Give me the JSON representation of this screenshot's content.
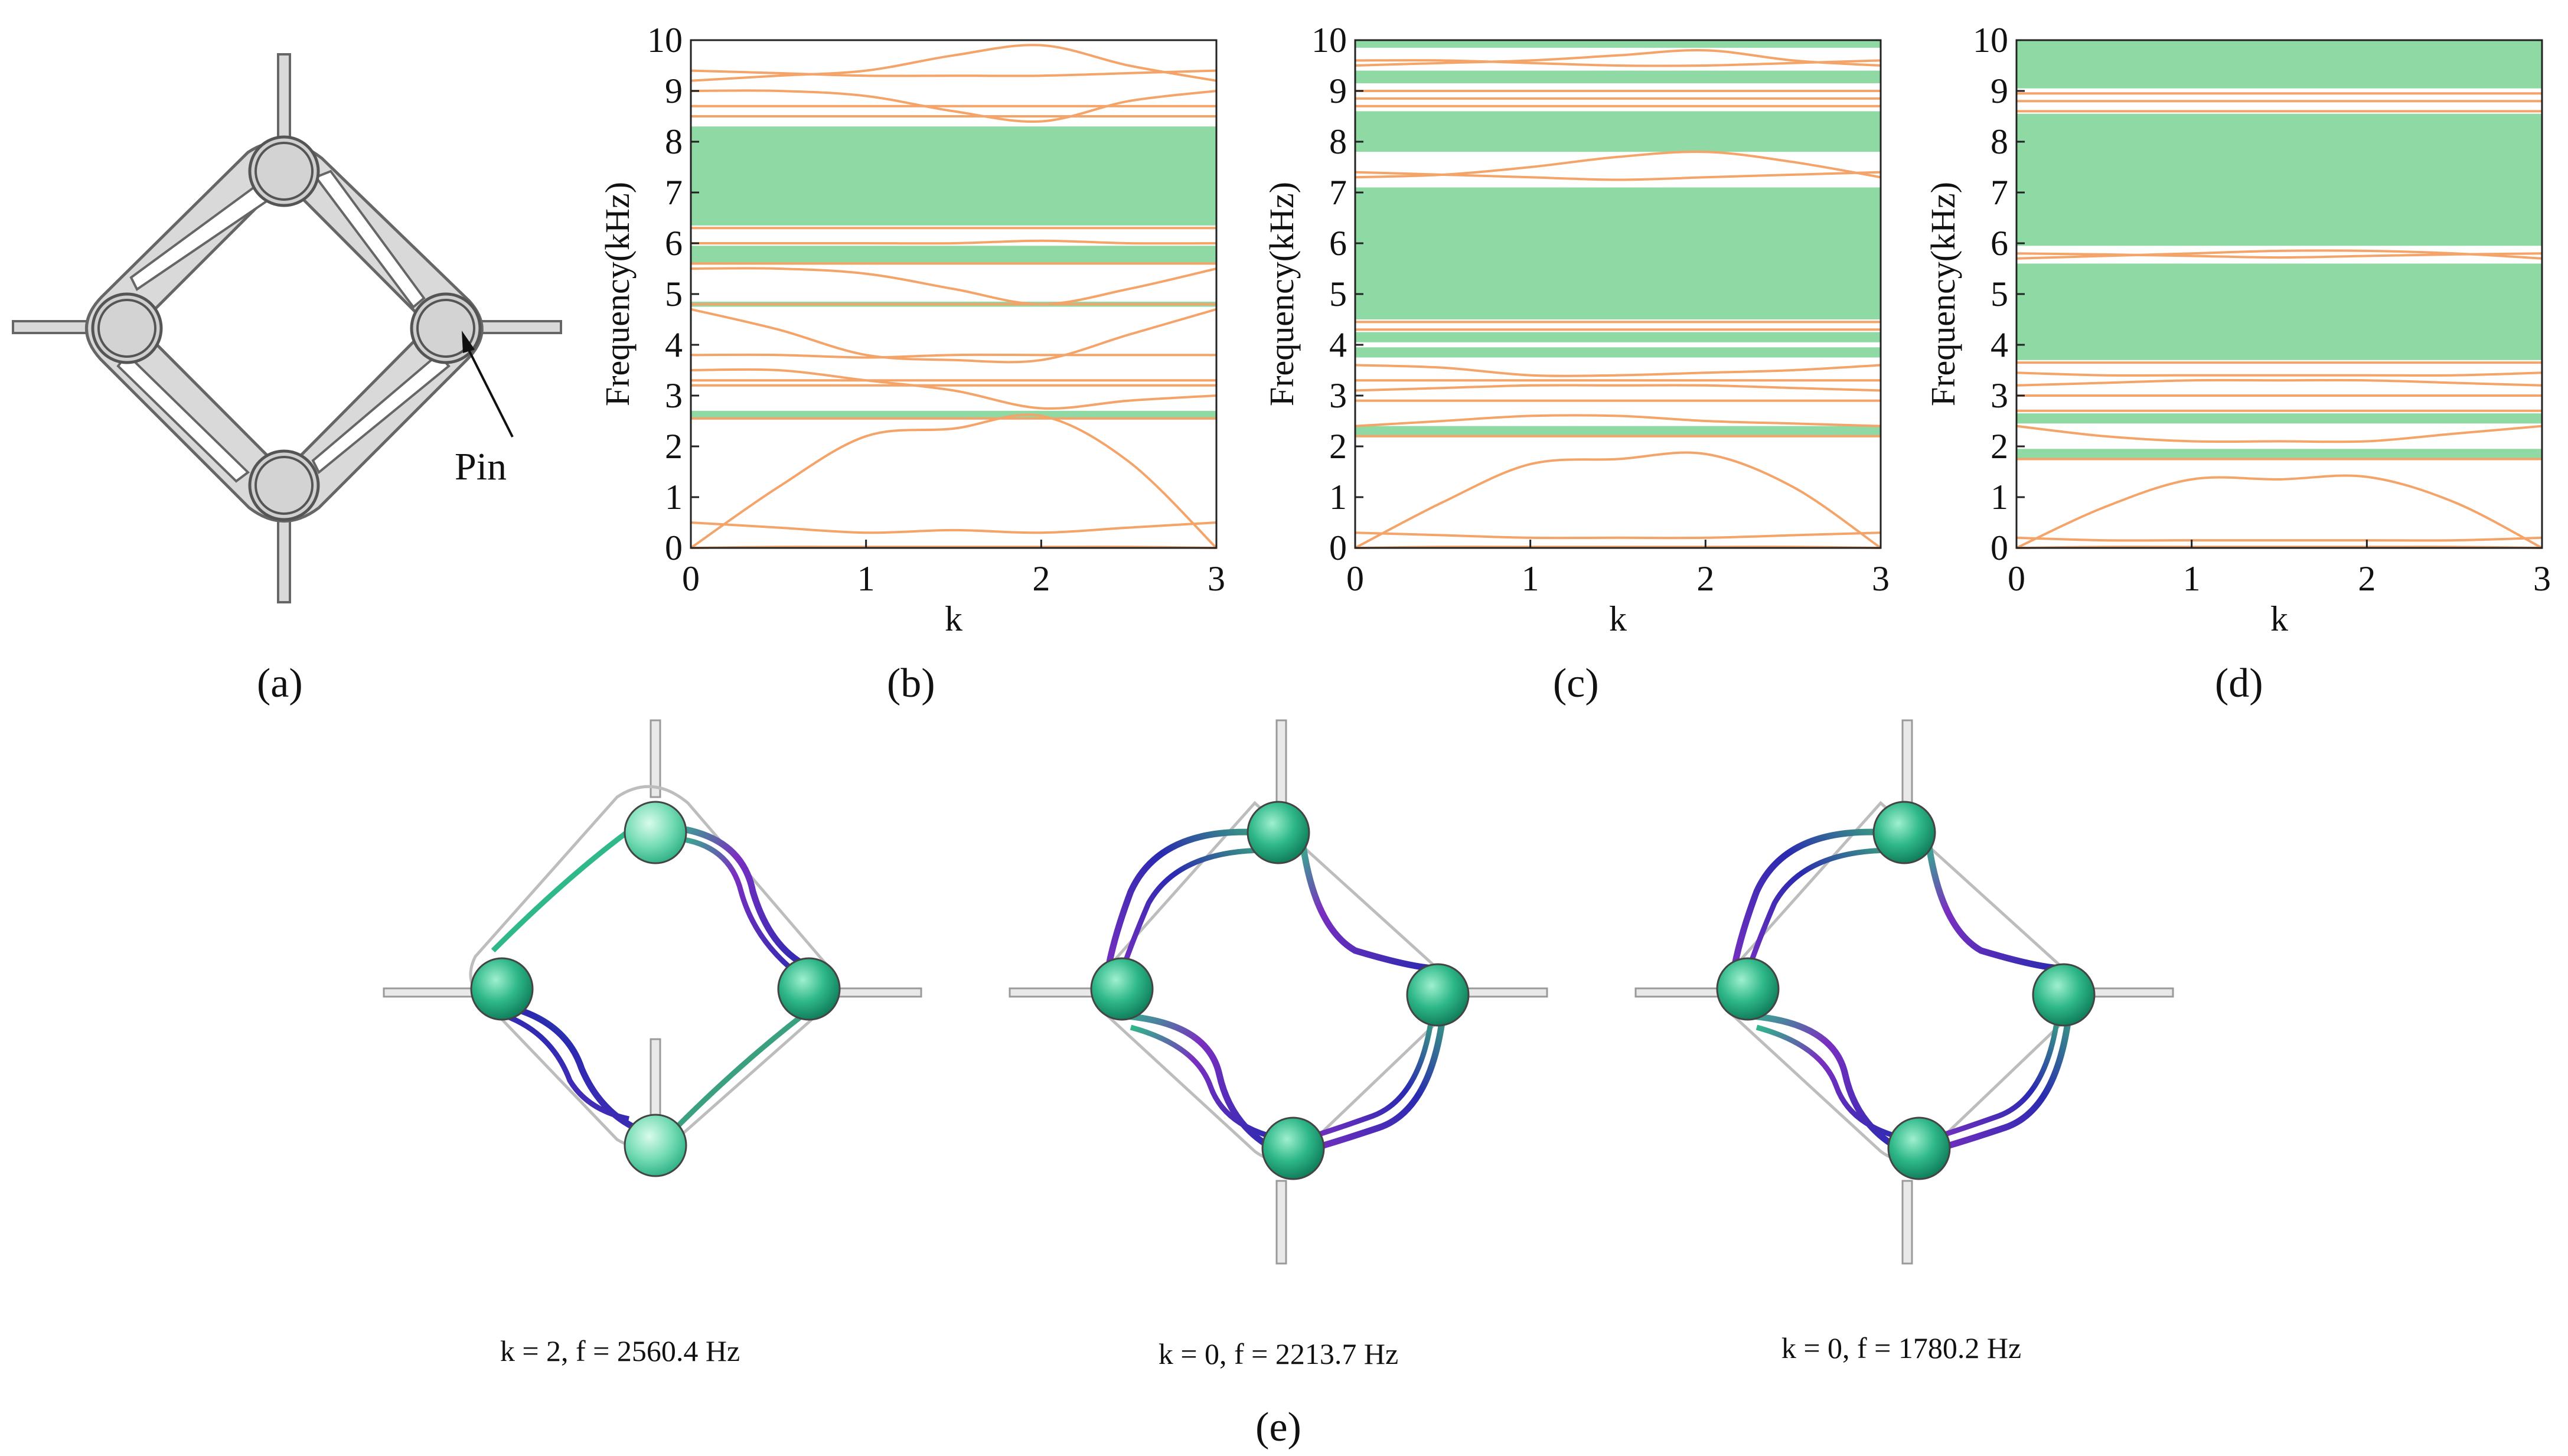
{
  "panels": {
    "a": {
      "label": "(a)",
      "annotation": "Pin"
    },
    "b": {
      "label": "(b)"
    },
    "c": {
      "label": "(c)"
    },
    "d": {
      "label": "(d)"
    },
    "e": {
      "label": "(e)",
      "modes": [
        {
          "caption": "k = 2, f = 2560.4 Hz"
        },
        {
          "caption": "k = 0, f = 2213.7 Hz"
        },
        {
          "caption": "k = 0, f = 1780.2 Hz"
        }
      ]
    }
  },
  "colors": {
    "band_line": "#f4a469",
    "band_gap": "#8fd9a4",
    "structure_fill": "#d9d9d9",
    "structure_stroke": "#666666",
    "mode_green": "#2fb889",
    "mode_purple": "#7a2fc0",
    "mode_blue": "#2a2ab0"
  },
  "chart_data": [
    {
      "id": "b",
      "type": "line",
      "xlabel": "k",
      "ylabel": "Frequency(kHz)",
      "xlim": [
        0,
        3
      ],
      "ylim": [
        0,
        10
      ],
      "xticks": [
        "0",
        "1",
        "2",
        "3"
      ],
      "yticks": [
        "0",
        "1",
        "2",
        "3",
        "4",
        "5",
        "6",
        "7",
        "8",
        "9",
        "10"
      ],
      "bandgaps": [
        [
          2.55,
          2.7
        ],
        [
          4.75,
          4.85
        ],
        [
          5.6,
          5.95
        ],
        [
          6.35,
          8.3
        ]
      ],
      "k": [
        0,
        0.5,
        1,
        1.5,
        2,
        2.5,
        3
      ],
      "bands": [
        [
          0,
          0.02,
          0.02,
          0.02,
          0.02,
          0.02,
          0.0
        ],
        [
          0.0,
          1.2,
          2.2,
          2.35,
          2.6,
          1.7,
          0.0
        ],
        [
          0.5,
          0.4,
          0.3,
          0.35,
          0.3,
          0.4,
          0.5
        ],
        [
          2.55,
          2.55,
          2.55,
          2.55,
          2.55,
          2.55,
          2.55
        ],
        [
          3.2,
          3.2,
          3.2,
          3.2,
          3.2,
          3.2,
          3.2
        ],
        [
          3.3,
          3.3,
          3.3,
          3.3,
          3.3,
          3.3,
          3.3
        ],
        [
          3.5,
          3.5,
          3.3,
          3.1,
          2.75,
          2.9,
          3.0
        ],
        [
          4.7,
          4.3,
          3.8,
          3.7,
          3.7,
          4.2,
          4.7
        ],
        [
          3.8,
          3.8,
          3.75,
          3.8,
          3.8,
          3.8,
          3.8
        ],
        [
          4.8,
          4.8,
          4.8,
          4.8,
          4.8,
          4.8,
          4.8
        ],
        [
          5.5,
          5.5,
          5.4,
          5.1,
          4.8,
          5.1,
          5.5
        ],
        [
          5.6,
          5.6,
          5.6,
          5.6,
          5.6,
          5.6,
          5.6
        ],
        [
          6.0,
          6.0,
          6.0,
          6.0,
          6.05,
          6.0,
          6.0
        ],
        [
          6.3,
          6.3,
          6.3,
          6.3,
          6.3,
          6.3,
          6.3
        ],
        [
          8.5,
          8.5,
          8.5,
          8.5,
          8.5,
          8.5,
          8.5
        ],
        [
          8.7,
          8.7,
          8.7,
          8.7,
          8.7,
          8.7,
          8.7
        ],
        [
          9.2,
          9.3,
          9.4,
          9.7,
          9.9,
          9.5,
          9.2
        ],
        [
          9.0,
          9.0,
          8.9,
          8.6,
          8.4,
          8.8,
          9.0
        ],
        [
          9.4,
          9.35,
          9.3,
          9.3,
          9.3,
          9.35,
          9.4
        ]
      ]
    },
    {
      "id": "c",
      "type": "line",
      "xlabel": "k",
      "ylabel": "Frequency(kHz)",
      "xlim": [
        0,
        3
      ],
      "ylim": [
        0,
        10
      ],
      "xticks": [
        "0",
        "1",
        "2",
        "3"
      ],
      "yticks": [
        "0",
        "1",
        "2",
        "3",
        "4",
        "5",
        "6",
        "7",
        "8",
        "9",
        "10"
      ],
      "bandgaps": [
        [
          2.2,
          2.4
        ],
        [
          3.75,
          3.95
        ],
        [
          4.05,
          4.25
        ],
        [
          4.5,
          7.1
        ],
        [
          7.8,
          8.6
        ],
        [
          9.15,
          9.4
        ],
        [
          9.85,
          10.0
        ]
      ],
      "k": [
        0,
        0.5,
        1,
        1.5,
        2,
        2.5,
        3
      ],
      "bands": [
        [
          0,
          0.02,
          0.02,
          0.02,
          0.02,
          0.02,
          0.0
        ],
        [
          0.0,
          0.9,
          1.65,
          1.75,
          1.85,
          1.2,
          0.0
        ],
        [
          0.3,
          0.25,
          0.2,
          0.2,
          0.2,
          0.25,
          0.3
        ],
        [
          2.2,
          2.2,
          2.2,
          2.2,
          2.2,
          2.2,
          2.2
        ],
        [
          2.4,
          2.5,
          2.6,
          2.6,
          2.5,
          2.45,
          2.4
        ],
        [
          2.9,
          2.9,
          2.9,
          2.9,
          2.9,
          2.9,
          2.9
        ],
        [
          3.1,
          3.15,
          3.2,
          3.2,
          3.2,
          3.15,
          3.1
        ],
        [
          3.3,
          3.3,
          3.3,
          3.3,
          3.3,
          3.3,
          3.3
        ],
        [
          3.6,
          3.55,
          3.4,
          3.4,
          3.45,
          3.5,
          3.6
        ],
        [
          4.3,
          4.3,
          4.3,
          4.3,
          4.3,
          4.3,
          4.3
        ],
        [
          4.45,
          4.45,
          4.45,
          4.45,
          4.45,
          4.45,
          4.45
        ],
        [
          7.3,
          7.35,
          7.5,
          7.7,
          7.8,
          7.6,
          7.3
        ],
        [
          7.4,
          7.35,
          7.3,
          7.25,
          7.3,
          7.35,
          7.4
        ],
        [
          8.7,
          8.7,
          8.7,
          8.7,
          8.7,
          8.7,
          8.7
        ],
        [
          8.85,
          8.85,
          8.85,
          8.85,
          8.85,
          8.85,
          8.85
        ],
        [
          9.0,
          9.0,
          9.0,
          9.0,
          9.0,
          9.0,
          9.0
        ],
        [
          9.5,
          9.55,
          9.6,
          9.7,
          9.8,
          9.6,
          9.5
        ],
        [
          9.6,
          9.6,
          9.55,
          9.5,
          9.5,
          9.55,
          9.6
        ]
      ]
    },
    {
      "id": "d",
      "type": "line",
      "xlabel": "k",
      "ylabel": "Frequency(kHz)",
      "xlim": [
        0,
        3
      ],
      "ylim": [
        0,
        10
      ],
      "xticks": [
        "0",
        "1",
        "2",
        "3"
      ],
      "yticks": [
        "0",
        "1",
        "2",
        "3",
        "4",
        "5",
        "6",
        "7",
        "8",
        "9",
        "10"
      ],
      "bandgaps": [
        [
          1.75,
          1.95
        ],
        [
          2.45,
          2.65
        ],
        [
          3.7,
          5.6
        ],
        [
          5.95,
          8.55
        ],
        [
          9.05,
          10.0
        ]
      ],
      "k": [
        0,
        0.5,
        1,
        1.5,
        2,
        2.5,
        3
      ],
      "bands": [
        [
          0,
          0.02,
          0.02,
          0.02,
          0.02,
          0.02,
          0.0
        ],
        [
          0.0,
          0.8,
          1.35,
          1.35,
          1.4,
          0.9,
          0.0
        ],
        [
          0.2,
          0.15,
          0.15,
          0.15,
          0.15,
          0.15,
          0.2
        ],
        [
          1.75,
          1.75,
          1.75,
          1.75,
          1.75,
          1.75,
          1.75
        ],
        [
          2.4,
          2.2,
          2.1,
          2.1,
          2.1,
          2.25,
          2.4
        ],
        [
          2.7,
          2.7,
          2.7,
          2.7,
          2.7,
          2.7,
          2.7
        ],
        [
          3.0,
          3.0,
          3.0,
          3.0,
          3.0,
          3.0,
          3.0
        ],
        [
          3.2,
          3.25,
          3.3,
          3.3,
          3.3,
          3.25,
          3.2
        ],
        [
          3.45,
          3.4,
          3.4,
          3.4,
          3.4,
          3.4,
          3.45
        ],
        [
          3.65,
          3.65,
          3.65,
          3.65,
          3.65,
          3.65,
          3.65
        ],
        [
          5.7,
          5.75,
          5.8,
          5.85,
          5.85,
          5.8,
          5.7
        ],
        [
          5.8,
          5.78,
          5.75,
          5.72,
          5.75,
          5.78,
          5.8
        ],
        [
          8.6,
          8.6,
          8.6,
          8.6,
          8.6,
          8.6,
          8.6
        ],
        [
          8.8,
          8.8,
          8.8,
          8.8,
          8.8,
          8.8,
          8.8
        ],
        [
          8.95,
          8.95,
          8.95,
          8.95,
          8.95,
          8.95,
          8.95
        ]
      ]
    }
  ]
}
